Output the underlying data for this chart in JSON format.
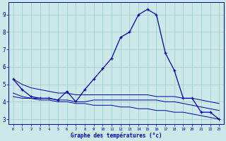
{
  "xlabel": "Graphe des températures (°c)",
  "background_color": "#cce8e8",
  "grid_color": "#99cccc",
  "line_color": "#0000aa",
  "x_hours": [
    0,
    1,
    2,
    3,
    4,
    5,
    6,
    7,
    8,
    9,
    10,
    11,
    12,
    13,
    14,
    15,
    16,
    17,
    18,
    19,
    20,
    21,
    22,
    23
  ],
  "temp_main": [
    5.3,
    4.7,
    4.3,
    4.2,
    4.2,
    4.1,
    4.6,
    4.0,
    4.7,
    5.3,
    5.9,
    6.5,
    7.7,
    8.0,
    9.0,
    9.3,
    9.0,
    6.8,
    5.8,
    4.2,
    4.2,
    3.4,
    3.4,
    3.0
  ],
  "temp_dew": [
    4.3,
    4.2,
    4.2,
    4.2,
    4.2,
    4.1,
    4.1,
    4.0,
    4.0,
    4.1,
    4.1,
    4.1,
    4.1,
    4.1,
    4.1,
    4.1,
    4.1,
    4.0,
    4.0,
    3.9,
    3.8,
    3.7,
    3.6,
    3.5
  ],
  "temp_min": [
    4.5,
    4.3,
    4.2,
    4.1,
    4.1,
    4.0,
    4.0,
    3.9,
    3.9,
    3.8,
    3.8,
    3.8,
    3.7,
    3.7,
    3.6,
    3.6,
    3.5,
    3.5,
    3.4,
    3.4,
    3.3,
    3.2,
    3.1,
    3.0
  ],
  "temp_max": [
    5.3,
    5.0,
    4.8,
    4.7,
    4.6,
    4.5,
    4.5,
    4.4,
    4.4,
    4.4,
    4.4,
    4.4,
    4.4,
    4.4,
    4.4,
    4.4,
    4.3,
    4.3,
    4.3,
    4.2,
    4.2,
    4.1,
    4.0,
    3.9
  ],
  "ylim": [
    2.7,
    9.7
  ],
  "yticks": [
    3,
    4,
    5,
    6,
    7,
    8,
    9
  ],
  "xlim": [
    -0.5,
    23.5
  ]
}
